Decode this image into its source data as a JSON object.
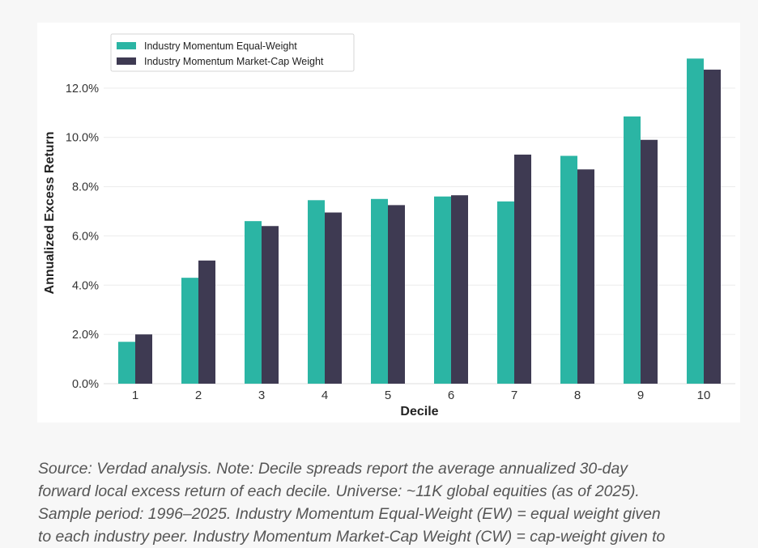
{
  "chart_data": {
    "type": "bar",
    "categories": [
      "1",
      "2",
      "3",
      "4",
      "5",
      "6",
      "7",
      "8",
      "9",
      "10"
    ],
    "xlabel": "Decile",
    "ylabel": "Annualized Excess Return",
    "ylim": [
      0,
      14
    ],
    "yticks": [
      "0.0%",
      "2.0%",
      "4.0%",
      "6.0%",
      "8.0%",
      "10.0%",
      "12.0%"
    ],
    "grid": true,
    "legend_position": "top-left",
    "series": [
      {
        "name": "Industry Momentum Equal-Weight",
        "color": "#2bb5a4",
        "values": [
          1.7,
          4.3,
          6.6,
          7.45,
          7.5,
          7.6,
          7.4,
          9.25,
          10.85,
          13.2
        ]
      },
      {
        "name": "Industry Momentum Market-Cap Weight",
        "color": "#3e3a52",
        "values": [
          2.0,
          5.0,
          6.4,
          6.95,
          7.25,
          7.65,
          9.3,
          8.7,
          9.9,
          12.75
        ]
      }
    ]
  },
  "caption": {
    "lines": [
      "Source: Verdad analysis. Note: Decile spreads report the average annualized 30-day",
      "forward local excess return of each decile. Universe: ~11K global equities (as of 2025).",
      "Sample period: 1996–2025. Industry Momentum Equal-Weight (EW) = equal weight given",
      "to each industry peer. Industry Momentum Market-Cap Weight (CW) = cap-weight given to"
    ]
  }
}
